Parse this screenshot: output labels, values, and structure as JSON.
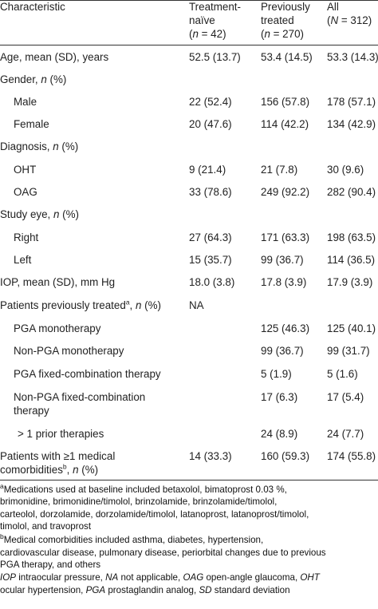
{
  "header": {
    "characteristic": "Characteristic",
    "col1": {
      "line1": "Treatment-",
      "line2": "naïve",
      "n": "(n = 42)"
    },
    "col2": {
      "line1": "Previously",
      "line2": "treated",
      "n": "(n = 270)"
    },
    "col3": {
      "line1": "All",
      "n": "(N = 312)"
    }
  },
  "rows": [
    {
      "label": "Age, mean (SD), years",
      "c1": "52.5 (13.7)",
      "c2": "53.4 (14.5)",
      "c3": "53.3 (14.3)"
    },
    {
      "label": "Gender, n (%)",
      "c1": "",
      "c2": "",
      "c3": ""
    },
    {
      "label": "Male",
      "c1": "22 (52.4)",
      "c2": "156 (57.8)",
      "c3": "178 (57.1)"
    },
    {
      "label": "Female",
      "c1": "20 (47.6)",
      "c2": "114 (42.2)",
      "c3": "134 (42.9)"
    },
    {
      "label": "Diagnosis, n (%)",
      "c1": "",
      "c2": "",
      "c3": ""
    },
    {
      "label": "OHT",
      "c1": "9 (21.4)",
      "c2": "21 (7.8)",
      "c3": "30 (9.6)"
    },
    {
      "label": "OAG",
      "c1": "33 (78.6)",
      "c2": "249 (92.2)",
      "c3": "282 (90.4)"
    },
    {
      "label": "Study eye, n (%)",
      "c1": "",
      "c2": "",
      "c3": ""
    },
    {
      "label": "Right",
      "c1": "27 (64.3)",
      "c2": "171 (63.3)",
      "c3": "198 (63.5)"
    },
    {
      "label": "Left",
      "c1": "15 (35.7)",
      "c2": "99 (36.7)",
      "c3": "114 (36.5)"
    },
    {
      "label": "IOP, mean (SD), mm Hg",
      "c1": "18.0 (3.8)",
      "c2": "17.8 (3.9)",
      "c3": "17.9 (3.9)"
    },
    {
      "label": "Patients previously treated",
      "sup": "a",
      "tail": ", n (%)",
      "c1": "NA",
      "c2": "",
      "c3": ""
    },
    {
      "label": "PGA monotherapy",
      "c1": "",
      "c2": "125 (46.3)",
      "c3": "125 (40.1)"
    },
    {
      "label": "Non-PGA monotherapy",
      "c1": "",
      "c2": "99 (36.7)",
      "c3": "99 (31.7)"
    },
    {
      "label": "PGA fixed-combination therapy",
      "c1": "",
      "c2": "5 (1.9)",
      "c3": "5 (1.6)"
    },
    {
      "label": "Non-PGA fixed-combination",
      "label2": "therapy",
      "c1": "",
      "c2": "17 (6.3)",
      "c3": "17 (5.4)"
    },
    {
      "label": "> 1 prior therapies",
      "c1": "",
      "c2": "24 (8.9)",
      "c3": "24 (7.7)"
    },
    {
      "label": "Patients with ≥1 medical",
      "label2": "comorbidities",
      "sup2": "b",
      "tail2": ", n (%)",
      "c1": "14 (33.3)",
      "c2": "160 (59.3)",
      "c3": "174 (55.8)"
    }
  ],
  "footnotes": {
    "a_sup": "a",
    "a": [
      "Medications used at baseline included betaxolol, bimatoprost 0.03 %,",
      "brimonidine, brimonidine/timolol, brinzolamide, brinzolamide/timolol,",
      "carteolol, dorzolamide, dorzolamide/timolol, latanoprost, latanoprost/timolol,",
      "timolol, and travoprost"
    ],
    "b_sup": "b",
    "b": [
      "Medical comorbidities included asthma, diabetes, hypertension,",
      "cardiovascular disease, pulmonary disease, periorbital changes due to previous",
      "PGA therapy, and others"
    ],
    "abbr": {
      "iop_k": "IOP",
      "iop_v": " intraocular pressure, ",
      "na_k": "NA",
      "na_v": " not applicable, ",
      "oag_k": "OAG",
      "oag_v": " open-angle glaucoma, ",
      "oht_k": "OHT",
      "oht_v": "ocular hypertension, ",
      "pga_k": "PGA",
      "pga_v": " prostaglandin analog, ",
      "sd_k": "SD",
      "sd_v": " standard deviation"
    }
  }
}
